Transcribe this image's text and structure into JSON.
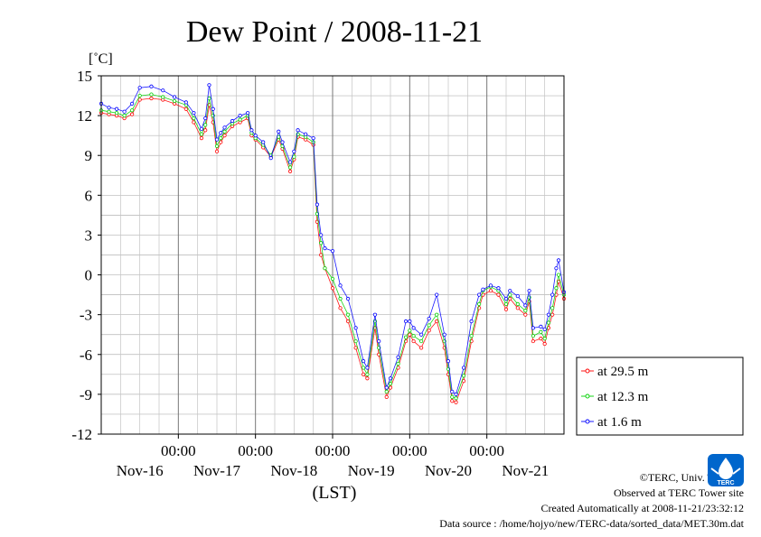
{
  "chart_data": {
    "type": "line",
    "title": "Dew Point / 2008-11-21",
    "ylabel": "[˚C]",
    "xlabel": "(LST)",
    "ylim": [
      -12,
      15
    ],
    "yticks": [
      15,
      12,
      9,
      6,
      3,
      0,
      -3,
      -6,
      -9,
      -12
    ],
    "xlim": [
      -1.0,
      5.0
    ],
    "time_labels": [
      "00:00",
      "00:00",
      "00:00",
      "00:00",
      "00:00"
    ],
    "day_labels": [
      "Nov-16",
      "Nov-17",
      "Nov-18",
      "Nov-19",
      "Nov-20",
      "Nov-21"
    ],
    "grid": true,
    "legend_position": "right",
    "series": [
      {
        "name": "at 29.5 m",
        "color": "#ff0000",
        "points": [
          [
            -1.0,
            12.2
          ],
          [
            -0.9,
            12.1
          ],
          [
            -0.8,
            12.0
          ],
          [
            -0.7,
            11.8
          ],
          [
            -0.6,
            12.1
          ],
          [
            -0.5,
            13.2
          ],
          [
            -0.35,
            13.3
          ],
          [
            -0.2,
            13.2
          ],
          [
            -0.05,
            12.9
          ],
          [
            0.1,
            12.5
          ],
          [
            0.2,
            11.5
          ],
          [
            0.3,
            10.3
          ],
          [
            0.35,
            10.9
          ],
          [
            0.4,
            12.8
          ],
          [
            0.45,
            11.5
          ],
          [
            0.5,
            9.3
          ],
          [
            0.55,
            10.0
          ],
          [
            0.6,
            10.5
          ],
          [
            0.7,
            11.2
          ],
          [
            0.8,
            11.5
          ],
          [
            0.9,
            11.8
          ],
          [
            0.95,
            10.5
          ],
          [
            1.0,
            10.2
          ],
          [
            1.1,
            9.6
          ],
          [
            1.2,
            8.9
          ],
          [
            1.3,
            10.2
          ],
          [
            1.35,
            9.5
          ],
          [
            1.45,
            7.8
          ],
          [
            1.5,
            8.7
          ],
          [
            1.55,
            10.4
          ],
          [
            1.65,
            10.2
          ],
          [
            1.75,
            9.8
          ],
          [
            1.8,
            4.0
          ],
          [
            1.85,
            1.5
          ],
          [
            1.9,
            0.5
          ],
          [
            2.0,
            -1.0
          ],
          [
            2.1,
            -2.5
          ],
          [
            2.2,
            -3.5
          ],
          [
            2.3,
            -5.5
          ],
          [
            2.4,
            -7.5
          ],
          [
            2.45,
            -7.8
          ],
          [
            2.55,
            -4.0
          ],
          [
            2.6,
            -6.0
          ],
          [
            2.7,
            -9.2
          ],
          [
            2.75,
            -8.5
          ],
          [
            2.85,
            -7.0
          ],
          [
            2.95,
            -5.0
          ],
          [
            3.0,
            -4.5
          ],
          [
            3.05,
            -5.0
          ],
          [
            3.15,
            -5.5
          ],
          [
            3.25,
            -4.2
          ],
          [
            3.35,
            -3.5
          ],
          [
            3.45,
            -5.5
          ],
          [
            3.5,
            -7.5
          ],
          [
            3.55,
            -9.5
          ],
          [
            3.6,
            -9.6
          ],
          [
            3.7,
            -8.0
          ],
          [
            3.8,
            -5.0
          ],
          [
            3.9,
            -2.5
          ],
          [
            3.95,
            -1.5
          ],
          [
            4.05,
            -1.2
          ],
          [
            4.15,
            -1.5
          ],
          [
            4.25,
            -2.6
          ],
          [
            4.3,
            -1.8
          ],
          [
            4.4,
            -2.5
          ],
          [
            4.5,
            -3.0
          ],
          [
            4.55,
            -2.0
          ],
          [
            4.6,
            -5.0
          ],
          [
            4.7,
            -4.8
          ],
          [
            4.75,
            -5.2
          ],
          [
            4.8,
            -4.0
          ],
          [
            4.85,
            -3.0
          ],
          [
            4.9,
            -1.5
          ],
          [
            4.93,
            -0.5
          ],
          [
            5.0,
            -1.8
          ]
        ]
      },
      {
        "name": "at 12.3 m",
        "color": "#00d000",
        "points": [
          [
            -1.0,
            12.4
          ],
          [
            -0.9,
            12.3
          ],
          [
            -0.8,
            12.2
          ],
          [
            -0.7,
            12.0
          ],
          [
            -0.6,
            12.4
          ],
          [
            -0.5,
            13.5
          ],
          [
            -0.35,
            13.6
          ],
          [
            -0.2,
            13.4
          ],
          [
            -0.05,
            13.1
          ],
          [
            0.1,
            12.8
          ],
          [
            0.2,
            11.8
          ],
          [
            0.3,
            10.6
          ],
          [
            0.35,
            11.3
          ],
          [
            0.4,
            13.3
          ],
          [
            0.45,
            12.0
          ],
          [
            0.5,
            9.7
          ],
          [
            0.55,
            10.3
          ],
          [
            0.6,
            10.8
          ],
          [
            0.7,
            11.4
          ],
          [
            0.8,
            11.7
          ],
          [
            0.9,
            12.0
          ],
          [
            0.95,
            10.7
          ],
          [
            1.0,
            10.3
          ],
          [
            1.1,
            9.8
          ],
          [
            1.2,
            9.0
          ],
          [
            1.3,
            10.4
          ],
          [
            1.35,
            9.7
          ],
          [
            1.45,
            8.1
          ],
          [
            1.5,
            8.9
          ],
          [
            1.55,
            10.6
          ],
          [
            1.65,
            10.4
          ],
          [
            1.75,
            10.0
          ],
          [
            1.8,
            4.6
          ],
          [
            1.85,
            2.4
          ],
          [
            1.9,
            0.5
          ],
          [
            2.0,
            -0.3
          ],
          [
            2.1,
            -1.8
          ],
          [
            2.2,
            -3.0
          ],
          [
            2.3,
            -5.0
          ],
          [
            2.4,
            -7.0
          ],
          [
            2.45,
            -7.5
          ],
          [
            2.55,
            -3.5
          ],
          [
            2.6,
            -5.5
          ],
          [
            2.7,
            -8.8
          ],
          [
            2.75,
            -8.2
          ],
          [
            2.85,
            -6.7
          ],
          [
            2.95,
            -4.7
          ],
          [
            3.0,
            -4.2
          ],
          [
            3.05,
            -4.6
          ],
          [
            3.15,
            -5.0
          ],
          [
            3.25,
            -3.8
          ],
          [
            3.35,
            -3.0
          ],
          [
            3.45,
            -5.0
          ],
          [
            3.5,
            -7.1
          ],
          [
            3.55,
            -9.2
          ],
          [
            3.6,
            -9.3
          ],
          [
            3.7,
            -7.6
          ],
          [
            3.8,
            -4.6
          ],
          [
            3.9,
            -2.2
          ],
          [
            3.95,
            -1.2
          ],
          [
            4.05,
            -0.9
          ],
          [
            4.15,
            -1.2
          ],
          [
            4.25,
            -2.2
          ],
          [
            4.3,
            -1.5
          ],
          [
            4.4,
            -2.2
          ],
          [
            4.5,
            -2.7
          ],
          [
            4.55,
            -1.7
          ],
          [
            4.6,
            -4.6
          ],
          [
            4.7,
            -4.3
          ],
          [
            4.75,
            -4.8
          ],
          [
            4.8,
            -3.6
          ],
          [
            4.85,
            -2.5
          ],
          [
            4.9,
            -1.0
          ],
          [
            4.93,
            0.0
          ],
          [
            5.0,
            -1.5
          ]
        ]
      },
      {
        "name": "at 1.6 m",
        "color": "#0000ff",
        "points": [
          [
            -1.0,
            12.9
          ],
          [
            -0.9,
            12.6
          ],
          [
            -0.8,
            12.5
          ],
          [
            -0.7,
            12.3
          ],
          [
            -0.6,
            12.9
          ],
          [
            -0.5,
            14.1
          ],
          [
            -0.35,
            14.2
          ],
          [
            -0.2,
            13.9
          ],
          [
            -0.05,
            13.4
          ],
          [
            0.1,
            13.0
          ],
          [
            0.2,
            12.2
          ],
          [
            0.3,
            11.0
          ],
          [
            0.35,
            11.8
          ],
          [
            0.4,
            14.3
          ],
          [
            0.45,
            12.5
          ],
          [
            0.5,
            10.2
          ],
          [
            0.55,
            10.7
          ],
          [
            0.6,
            11.1
          ],
          [
            0.7,
            11.6
          ],
          [
            0.8,
            12.0
          ],
          [
            0.9,
            12.2
          ],
          [
            0.95,
            10.9
          ],
          [
            1.0,
            10.5
          ],
          [
            1.1,
            10.0
          ],
          [
            1.2,
            8.8
          ],
          [
            1.3,
            10.8
          ],
          [
            1.35,
            10.0
          ],
          [
            1.45,
            8.5
          ],
          [
            1.5,
            9.3
          ],
          [
            1.55,
            10.9
          ],
          [
            1.65,
            10.6
          ],
          [
            1.75,
            10.3
          ],
          [
            1.8,
            5.3
          ],
          [
            1.85,
            3.0
          ],
          [
            1.9,
            2.0
          ],
          [
            2.0,
            1.8
          ],
          [
            2.1,
            -0.8
          ],
          [
            2.2,
            -1.8
          ],
          [
            2.3,
            -4.0
          ],
          [
            2.4,
            -6.5
          ],
          [
            2.45,
            -7.0
          ],
          [
            2.55,
            -3.0
          ],
          [
            2.6,
            -5.0
          ],
          [
            2.7,
            -8.5
          ],
          [
            2.75,
            -7.8
          ],
          [
            2.85,
            -6.2
          ],
          [
            2.95,
            -3.5
          ],
          [
            3.0,
            -3.5
          ],
          [
            3.05,
            -4.0
          ],
          [
            3.15,
            -4.5
          ],
          [
            3.25,
            -3.3
          ],
          [
            3.35,
            -1.5
          ],
          [
            3.45,
            -4.5
          ],
          [
            3.5,
            -6.5
          ],
          [
            3.55,
            -8.8
          ],
          [
            3.6,
            -9.0
          ],
          [
            3.7,
            -7.0
          ],
          [
            3.8,
            -3.5
          ],
          [
            3.9,
            -1.5
          ],
          [
            3.95,
            -1.1
          ],
          [
            4.05,
            -0.8
          ],
          [
            4.15,
            -1.0
          ],
          [
            4.25,
            -1.8
          ],
          [
            4.3,
            -1.2
          ],
          [
            4.4,
            -1.6
          ],
          [
            4.5,
            -2.3
          ],
          [
            4.55,
            -1.2
          ],
          [
            4.6,
            -4.0
          ],
          [
            4.7,
            -3.9
          ],
          [
            4.75,
            -4.1
          ],
          [
            4.8,
            -3.0
          ],
          [
            4.85,
            -1.5
          ],
          [
            4.9,
            0.5
          ],
          [
            4.93,
            1.1
          ],
          [
            5.0,
            -1.3
          ]
        ]
      }
    ]
  },
  "footer": {
    "copyright": "©TERC, Univ. Tsukuba",
    "observed": "Observed at TERC Tower site",
    "created": "Created Automatically at 2008-11-21/23:32:12",
    "source": "Data source : /home/hojyo/new/TERC-data/sorted_data/MET.30m.dat"
  },
  "logo": {
    "text": "TERC",
    "icon": "terc-logo-icon",
    "color": "#0066cc"
  }
}
